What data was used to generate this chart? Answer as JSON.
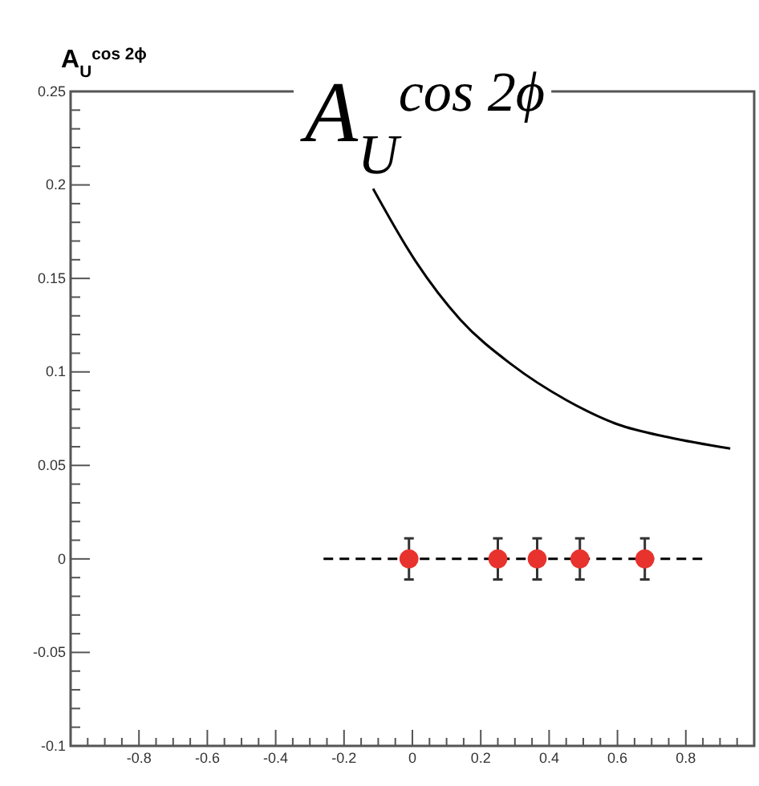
{
  "chart_data": {
    "type": "scatter",
    "title": "A$_{U}$$^{cos 2ϕ}$",
    "annotations": [
      "A$_{U}$$^{cos 2ϕ}$"
    ],
    "xlim": [
      -1,
      1
    ],
    "xticks": [
      {
        "value": -1,
        "label": null
      },
      {
        "value": -0.95,
        "label": null
      },
      {
        "value": -0.9,
        "label": null
      },
      {
        "value": -0.85,
        "label": null
      },
      {
        "value": -0.8,
        "label": "-0.8"
      },
      {
        "value": -0.75,
        "label": null
      },
      {
        "value": -0.7,
        "label": null
      },
      {
        "value": -0.65,
        "label": null
      },
      {
        "value": -0.6,
        "label": "-0.6"
      },
      {
        "value": -0.55,
        "label": null
      },
      {
        "value": -0.5,
        "label": null
      },
      {
        "value": -0.45,
        "label": null
      },
      {
        "value": -0.4,
        "label": "-0.4"
      },
      {
        "value": -0.35,
        "label": null
      },
      {
        "value": -0.3,
        "label": null
      },
      {
        "value": -0.25,
        "label": null
      },
      {
        "value": -0.2,
        "label": "-0.2"
      },
      {
        "value": -0.15,
        "label": null
      },
      {
        "value": -0.1,
        "label": null
      },
      {
        "value": -0.05,
        "label": null
      },
      0,
      {
        "value": 0.05,
        "label": null
      },
      {
        "value": 0.1,
        "label": null
      },
      {
        "value": 0.15,
        "label": null
      },
      0.2,
      {
        "value": 0.25,
        "label": null
      },
      {
        "value": 0.3,
        "label": null
      },
      {
        "value": 0.35,
        "label": null
      },
      0.4,
      {
        "value": 0.45,
        "label": null
      },
      {
        "value": 0.5,
        "label": null
      },
      {
        "value": 0.55,
        "label": null
      },
      0.6,
      {
        "value": 0.65,
        "label": null
      },
      {
        "value": 0.7,
        "label": null
      },
      {
        "value": 0.75,
        "label": null
      },
      0.8,
      {
        "value": 0.85,
        "label": null
      },
      {
        "value": 0.9,
        "label": null
      },
      {
        "value": 0.95,
        "label": null
      }
    ],
    "ylim": [
      -0.1,
      0.25
    ],
    "yticks": [
      -0.1,
      {
        "value": -0.09,
        "label": null
      },
      {
        "value": -0.08,
        "label": null
      },
      {
        "value": -0.07,
        "label": null
      },
      {
        "value": -0.06,
        "label": null
      },
      -0.05,
      {
        "value": -0.04,
        "label": null
      },
      {
        "value": -0.03,
        "label": null
      },
      {
        "value": -0.02,
        "label": null
      },
      {
        "value": -0.01,
        "label": null
      },
      0,
      {
        "value": 0.01,
        "label": null
      },
      {
        "value": 0.02,
        "label": null
      },
      {
        "value": 0.03,
        "label": null
      },
      {
        "value": 0.04,
        "label": null
      },
      0.05,
      {
        "value": 0.06,
        "label": null
      },
      {
        "value": 0.07,
        "label": null
      },
      {
        "value": 0.08,
        "label": null
      },
      {
        "value": 0.09,
        "label": null
      },
      0.1,
      {
        "value": 0.11,
        "label": null
      },
      {
        "value": 0.12,
        "label": null
      },
      {
        "value": 0.13,
        "label": null
      },
      {
        "value": 0.14,
        "label": null
      },
      0.15,
      {
        "value": 0.16,
        "label": null
      },
      {
        "value": 0.17,
        "label": null
      },
      {
        "value": 0.18,
        "label": null
      },
      {
        "value": 0.19,
        "label": null
      },
      0.2,
      {
        "value": 0.21,
        "label": null
      },
      {
        "value": 0.22,
        "label": null
      },
      {
        "value": 0.23,
        "label": null
      },
      {
        "value": 0.24,
        "label": null
      },
      0.25
    ],
    "series": [
      {
        "type": "line",
        "color": "#000000",
        "x": [
          -0.115,
          0.01,
          0.14,
          0.29,
          0.45,
          0.6,
          0.75,
          0.93
        ],
        "values": [
          0.198,
          0.159,
          0.128,
          0.104,
          0.085,
          0.072,
          0.065,
          0.059
        ]
      },
      {
        "type": "line",
        "color": "#000000",
        "line_style": "dashed",
        "x": [
          -0.26,
          0.86
        ],
        "values": [
          0,
          0
        ]
      },
      {
        "color": "#e8322d",
        "marker": "circle",
        "x": [
          -0.01,
          0.25,
          0.365,
          0.49,
          0.68
        ],
        "values": [
          0,
          0,
          0,
          0,
          0
        ],
        "errors": [
          0.011,
          0.011,
          0.011,
          0.011,
          0.011
        ]
      }
    ]
  }
}
